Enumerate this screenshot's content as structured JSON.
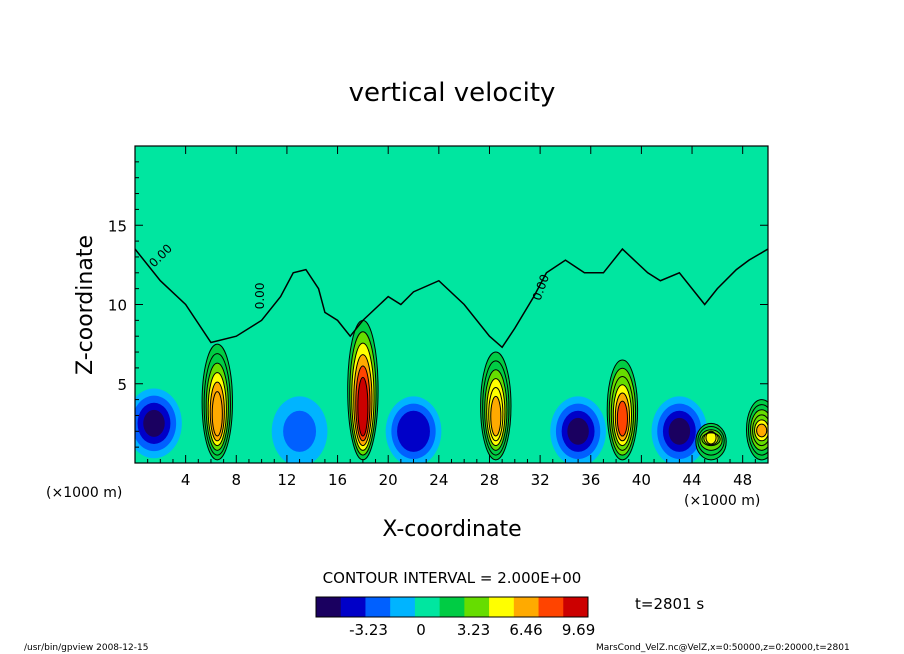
{
  "chart_data": {
    "type": "heatmap",
    "title": "vertical velocity",
    "xlabel": "X-coordinate",
    "ylabel": "Z-coordinate",
    "x_unit": "(×1000 m)",
    "y_unit": "(×1000 m)",
    "xlim": [
      0,
      50
    ],
    "ylim": [
      0,
      20
    ],
    "x_ticks": [
      "4",
      "8",
      "12",
      "16",
      "20",
      "24",
      "28",
      "32",
      "36",
      "40",
      "44",
      "48"
    ],
    "y_ticks": [
      "5",
      "10",
      "15"
    ],
    "contour_label": "0.00",
    "contour_interval": "CONTOUR INTERVAL = 2.000E+00",
    "colorbar_ticks": [
      "-3.23",
      "0",
      "3.23",
      "6.46",
      "9.69"
    ],
    "time_label": "t=2801 s",
    "footer_left": "/usr/bin/gpview  2008-12-15",
    "footer_right": "MarsCond_VelZ.nc@VelZ,x=0:50000,z=0:20000,t=2801",
    "background_color": "#00e6a0",
    "colormap": [
      "#1a0060",
      "#0000c8",
      "#0060ff",
      "#00b4ff",
      "#00e6a0",
      "#00cc44",
      "#66dd00",
      "#ffff00",
      "#ffaa00",
      "#ff4400",
      "#cc0000"
    ],
    "updrafts": [
      {
        "x": 6.5,
        "z_top": 7.5,
        "peak": 7.0
      },
      {
        "x": 18.0,
        "z_top": 9.0,
        "peak": 9.69
      },
      {
        "x": 28.5,
        "z_top": 7.0,
        "peak": 6.5
      },
      {
        "x": 38.5,
        "z_top": 6.5,
        "peak": 8.0
      },
      {
        "x": 45.5,
        "z_top": 2.5,
        "peak": 5.0
      },
      {
        "x": 49.5,
        "z_top": 4.0,
        "peak": 6.0
      }
    ],
    "downdrafts": [
      {
        "x": 1.5,
        "z": 2.5,
        "value": -3.23
      },
      {
        "x": 13.0,
        "z": 2.0,
        "value": -2.0
      },
      {
        "x": 22.0,
        "z": 2.0,
        "value": -2.5
      },
      {
        "x": 35.0,
        "z": 2.0,
        "value": -3.0
      },
      {
        "x": 43.0,
        "z": 2.0,
        "value": -3.0
      }
    ],
    "zero_contour": [
      [
        0,
        13.5
      ],
      [
        2,
        11.5
      ],
      [
        4,
        10
      ],
      [
        6,
        7.6
      ],
      [
        8,
        8
      ],
      [
        10,
        9
      ],
      [
        11.5,
        10.5
      ],
      [
        12.5,
        12
      ],
      [
        13.5,
        12.2
      ],
      [
        14.5,
        11
      ],
      [
        15,
        9.5
      ],
      [
        16,
        9
      ],
      [
        17,
        8
      ],
      [
        18,
        9
      ],
      [
        20,
        10.5
      ],
      [
        21,
        10
      ],
      [
        22,
        10.8
      ],
      [
        24,
        11.5
      ],
      [
        26,
        10
      ],
      [
        28,
        8
      ],
      [
        29,
        7.3
      ],
      [
        30,
        8.5
      ],
      [
        31.5,
        10.5
      ],
      [
        32.5,
        12
      ],
      [
        34,
        12.8
      ],
      [
        35.5,
        12
      ],
      [
        37,
        12
      ],
      [
        38.5,
        13.5
      ],
      [
        40.5,
        12
      ],
      [
        41.5,
        11.5
      ],
      [
        43,
        12
      ],
      [
        45,
        10
      ],
      [
        46,
        11
      ],
      [
        47.5,
        12.2
      ],
      [
        48.5,
        12.8
      ],
      [
        50,
        13.5
      ]
    ]
  }
}
